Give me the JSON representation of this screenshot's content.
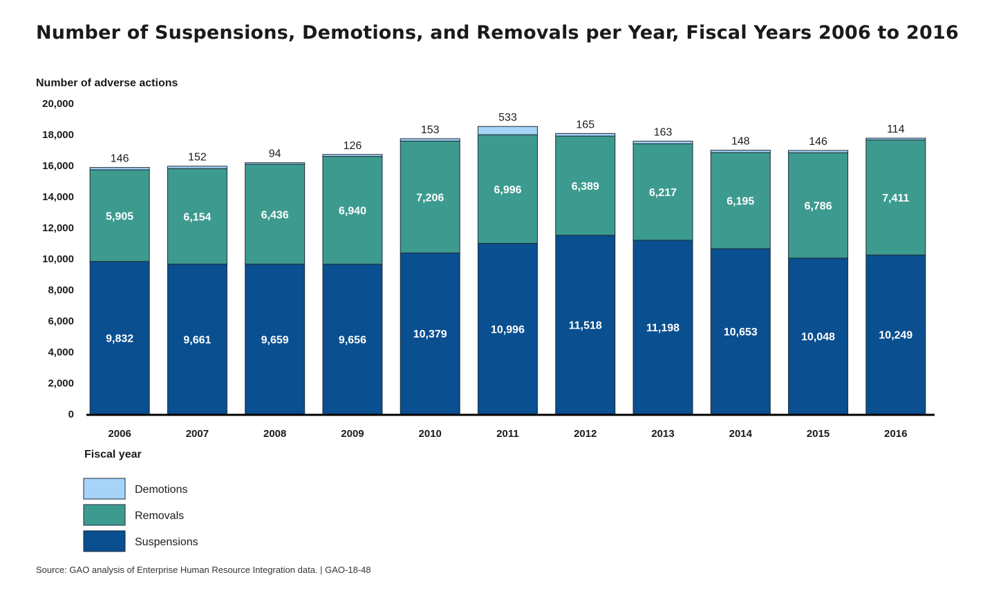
{
  "title": "Number of Suspensions, Demotions, and Removals per Year, Fiscal Years 2006 to 2016",
  "source": "Source: GAO analysis of Enterprise Human Resource Integration data.  |  GAO-18-48",
  "colors": {
    "Suspensions": "#0a4f8f",
    "Removals": "#3d9a8f",
    "Demotions": "#a6d3f7"
  },
  "chart_data": {
    "type": "bar",
    "stacked": true,
    "ylabel": "Number of adverse actions",
    "xlabel": "Fiscal year",
    "ylim": [
      0,
      20000
    ],
    "yticks": [
      0,
      2000,
      4000,
      6000,
      8000,
      10000,
      12000,
      14000,
      16000,
      18000,
      20000
    ],
    "ytick_labels": [
      "0",
      "2,000",
      "4,000",
      "6,000",
      "8,000",
      "10,000",
      "12,000",
      "14,000",
      "16,000",
      "18,000",
      "20,000"
    ],
    "categories": [
      "2006",
      "2007",
      "2008",
      "2009",
      "2010",
      "2011",
      "2012",
      "2013",
      "2014",
      "2015",
      "2016"
    ],
    "series": [
      {
        "name": "Suspensions",
        "values": [
          9832,
          9661,
          9659,
          9656,
          10379,
          10996,
          11518,
          11198,
          10653,
          10048,
          10249
        ],
        "labels": [
          "9,832",
          "9,661",
          "9,659",
          "9,656",
          "10,379",
          "10,996",
          "11,518",
          "11,198",
          "10,653",
          "10,048",
          "10,249"
        ]
      },
      {
        "name": "Removals",
        "values": [
          5905,
          6154,
          6436,
          6940,
          7206,
          6996,
          6389,
          6217,
          6195,
          6786,
          7411
        ],
        "labels": [
          "5,905",
          "6,154",
          "6,436",
          "6,940",
          "7,206",
          "6,996",
          "6,389",
          "6,217",
          "6,195",
          "6,786",
          "7,411"
        ]
      },
      {
        "name": "Demotions",
        "values": [
          146,
          152,
          94,
          126,
          153,
          533,
          165,
          163,
          148,
          146,
          114
        ],
        "labels": [
          "146",
          "152",
          "94",
          "126",
          "153",
          "533",
          "165",
          "163",
          "148",
          "146",
          "114"
        ]
      }
    ],
    "legend": [
      "Demotions",
      "Removals",
      "Suspensions"
    ],
    "legend_placement": "bottom-left",
    "grid": false
  }
}
